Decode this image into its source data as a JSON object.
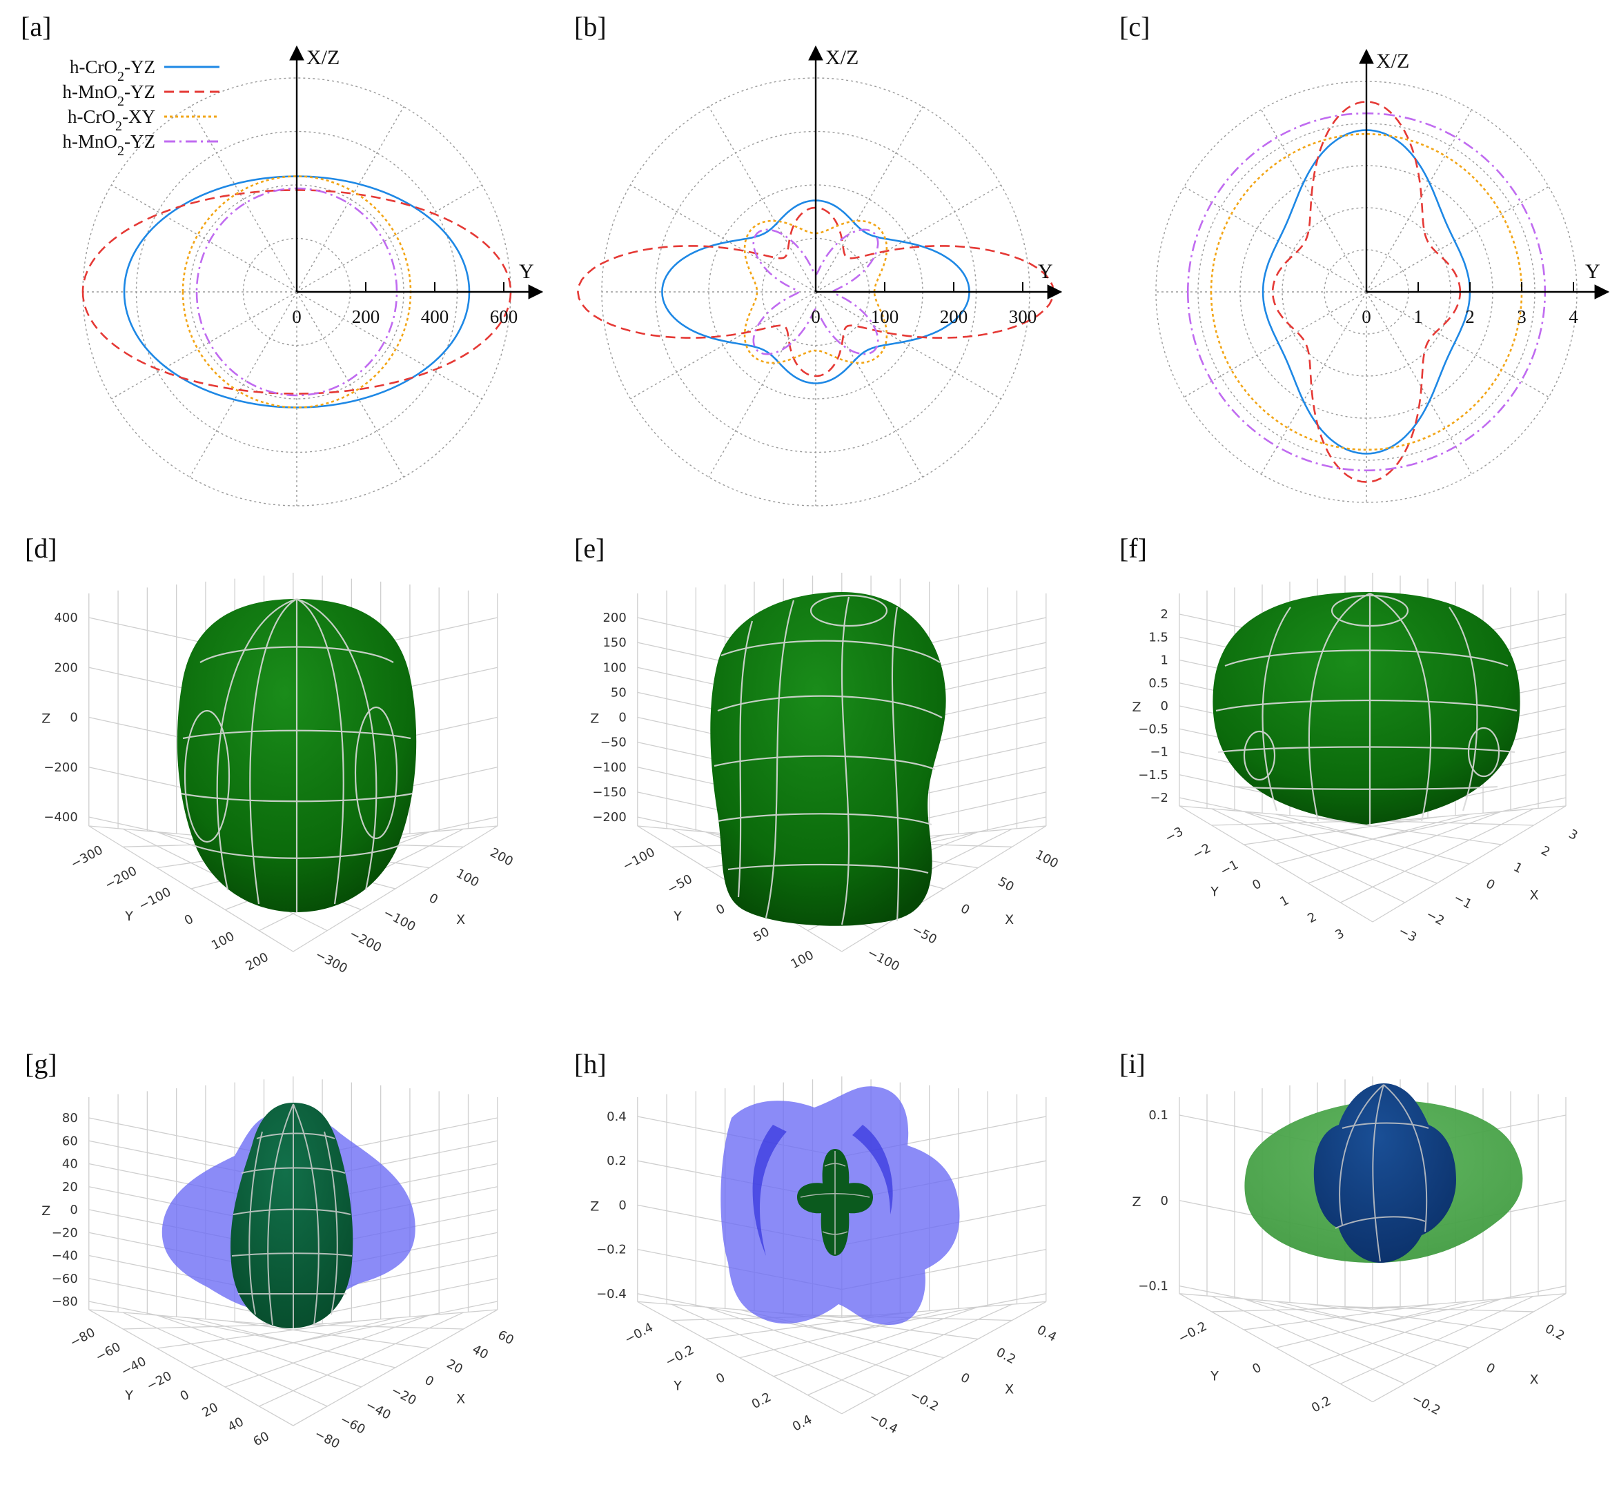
{
  "panel_labels": [
    "[a]",
    "[b]",
    "[c]",
    "[d]",
    "[e]",
    "[f]",
    "[g]",
    "[h]",
    "[i]"
  ],
  "colors": {
    "cro2_yz": "#1e88e5",
    "mno2_yz": "#e53935",
    "cro2_xy": "#f2a516",
    "mno2_yz_2": "#c06bf0",
    "surface_green": "#0b6e0b",
    "surface_blue": "#4444ee",
    "surface_navy": "#0d3b7a"
  },
  "chart_data": [
    {
      "panel": "[a]",
      "type": "polar",
      "radial_axis_label": "Y",
      "vertical_axis_label": "X/Z",
      "ticks": [
        "0",
        "200",
        "400",
        "600"
      ],
      "rmax": 600,
      "legend": [
        "h-CrO2-YZ",
        "h-MnO2-YZ",
        "h-CrO2-XY",
        "h-MnO2-YZ"
      ],
      "series": [
        {
          "name": "h-CrO2-YZ",
          "style": "solid",
          "y_extent": 500,
          "z_extent": 335
        },
        {
          "name": "h-MnO2-YZ",
          "style": "dashed",
          "y_extent": 620,
          "z_extent": 295
        },
        {
          "name": "h-CrO2-XY",
          "style": "dotted",
          "y_extent": 330,
          "z_extent": 335
        },
        {
          "name": "h-MnO2-YZ",
          "style": "dashdot",
          "y_extent": 290,
          "z_extent": 300
        }
      ]
    },
    {
      "panel": "[b]",
      "type": "polar",
      "radial_axis_label": "Y",
      "vertical_axis_label": "X/Z",
      "ticks": [
        "0",
        "100",
        "200",
        "300"
      ],
      "rmax": 300,
      "series": [
        {
          "name": "h-CrO2-YZ",
          "style": "solid",
          "y_extent": 210,
          "z_extent": 125
        },
        {
          "name": "h-MnO2-YZ",
          "style": "dashed",
          "y_extent": 305,
          "z_extent": 45
        },
        {
          "name": "h-CrO2-XY",
          "style": "dotted",
          "r_axis": 85,
          "r_diag": 130
        },
        {
          "name": "h-MnO2-YZ",
          "style": "dashdot",
          "r_axis": 25,
          "r_diag": 120
        }
      ]
    },
    {
      "panel": "[c]",
      "type": "polar",
      "radial_axis_label": "Y",
      "vertical_axis_label": "X/Z",
      "ticks": [
        "0",
        "1",
        "2",
        "3",
        "4"
      ],
      "rmax": 4,
      "series": [
        {
          "name": "h-CrO2-YZ",
          "style": "solid",
          "y_extent": 1.95,
          "z_extent": 3.05
        },
        {
          "name": "h-MnO2-YZ",
          "style": "dashed",
          "y_extent": 1.7,
          "z_extent": 3.45
        },
        {
          "name": "h-CrO2-XY",
          "style": "dotted",
          "y_extent": 3.0,
          "z_extent": 3.05
        },
        {
          "name": "h-MnO2-YZ",
          "style": "dashdot",
          "y_extent": 3.45,
          "z_extent": 3.45
        }
      ]
    },
    {
      "panel": "[d]",
      "type": "surface3d",
      "z_ticks": [
        "400",
        "200",
        "0",
        "−200",
        "−400"
      ],
      "y_ticks": [
        "−300",
        "−200",
        "−100",
        "0",
        "100",
        "200"
      ],
      "x_ticks": [
        "−300",
        "−200",
        "−100",
        "0",
        "100",
        "200"
      ],
      "axis_labels": {
        "x": "X",
        "y": "Y",
        "z": "Z"
      }
    },
    {
      "panel": "[e]",
      "type": "surface3d",
      "z_ticks": [
        "200",
        "150",
        "100",
        "50",
        "0",
        "−50",
        "−100",
        "−150",
        "−200"
      ],
      "y_ticks": [
        "−100",
        "−50",
        "0",
        "50",
        "100"
      ],
      "x_ticks": [
        "−100",
        "−50",
        "0",
        "50",
        "100"
      ],
      "axis_labels": {
        "x": "X",
        "y": "Y",
        "z": "Z"
      }
    },
    {
      "panel": "[f]",
      "type": "surface3d",
      "z_ticks": [
        "2",
        "1.5",
        "1",
        "0.5",
        "0",
        "−0.5",
        "−1",
        "−1.5",
        "−2"
      ],
      "y_ticks": [
        "−3",
        "−2",
        "−1",
        "0",
        "1",
        "2",
        "3"
      ],
      "x_ticks": [
        "−3",
        "−2",
        "−1",
        "0",
        "1",
        "2",
        "3"
      ],
      "axis_labels": {
        "x": "X",
        "y": "Y",
        "z": "Z"
      }
    },
    {
      "panel": "[g]",
      "type": "surface3d",
      "z_ticks": [
        "80",
        "60",
        "40",
        "20",
        "0",
        "−20",
        "−40",
        "−60",
        "−80"
      ],
      "y_ticks": [
        "−80",
        "−60",
        "−40",
        "−20",
        "0",
        "20",
        "40",
        "60"
      ],
      "x_ticks": [
        "−80",
        "−60",
        "−40",
        "−20",
        "0",
        "20",
        "40",
        "60"
      ],
      "axis_labels": {
        "x": "X",
        "y": "Y",
        "z": "Z"
      }
    },
    {
      "panel": "[h]",
      "type": "surface3d",
      "z_ticks": [
        "0.4",
        "0.2",
        "0",
        "−0.2",
        "−0.4"
      ],
      "y_ticks": [
        "−0.4",
        "−0.2",
        "0",
        "0.2",
        "0.4"
      ],
      "x_ticks": [
        "−0.4",
        "−0.2",
        "0",
        "0.2",
        "0.4"
      ],
      "axis_labels": {
        "x": "X",
        "y": "Y",
        "z": "Z"
      }
    },
    {
      "panel": "[i]",
      "type": "surface3d",
      "z_ticks": [
        "0.1",
        "0",
        "−0.1"
      ],
      "y_ticks": [
        "−0.2",
        "0",
        "0.2"
      ],
      "x_ticks": [
        "−0.2",
        "0",
        "0.2"
      ],
      "axis_labels": {
        "x": "X",
        "y": "Y",
        "z": "Z"
      }
    }
  ]
}
